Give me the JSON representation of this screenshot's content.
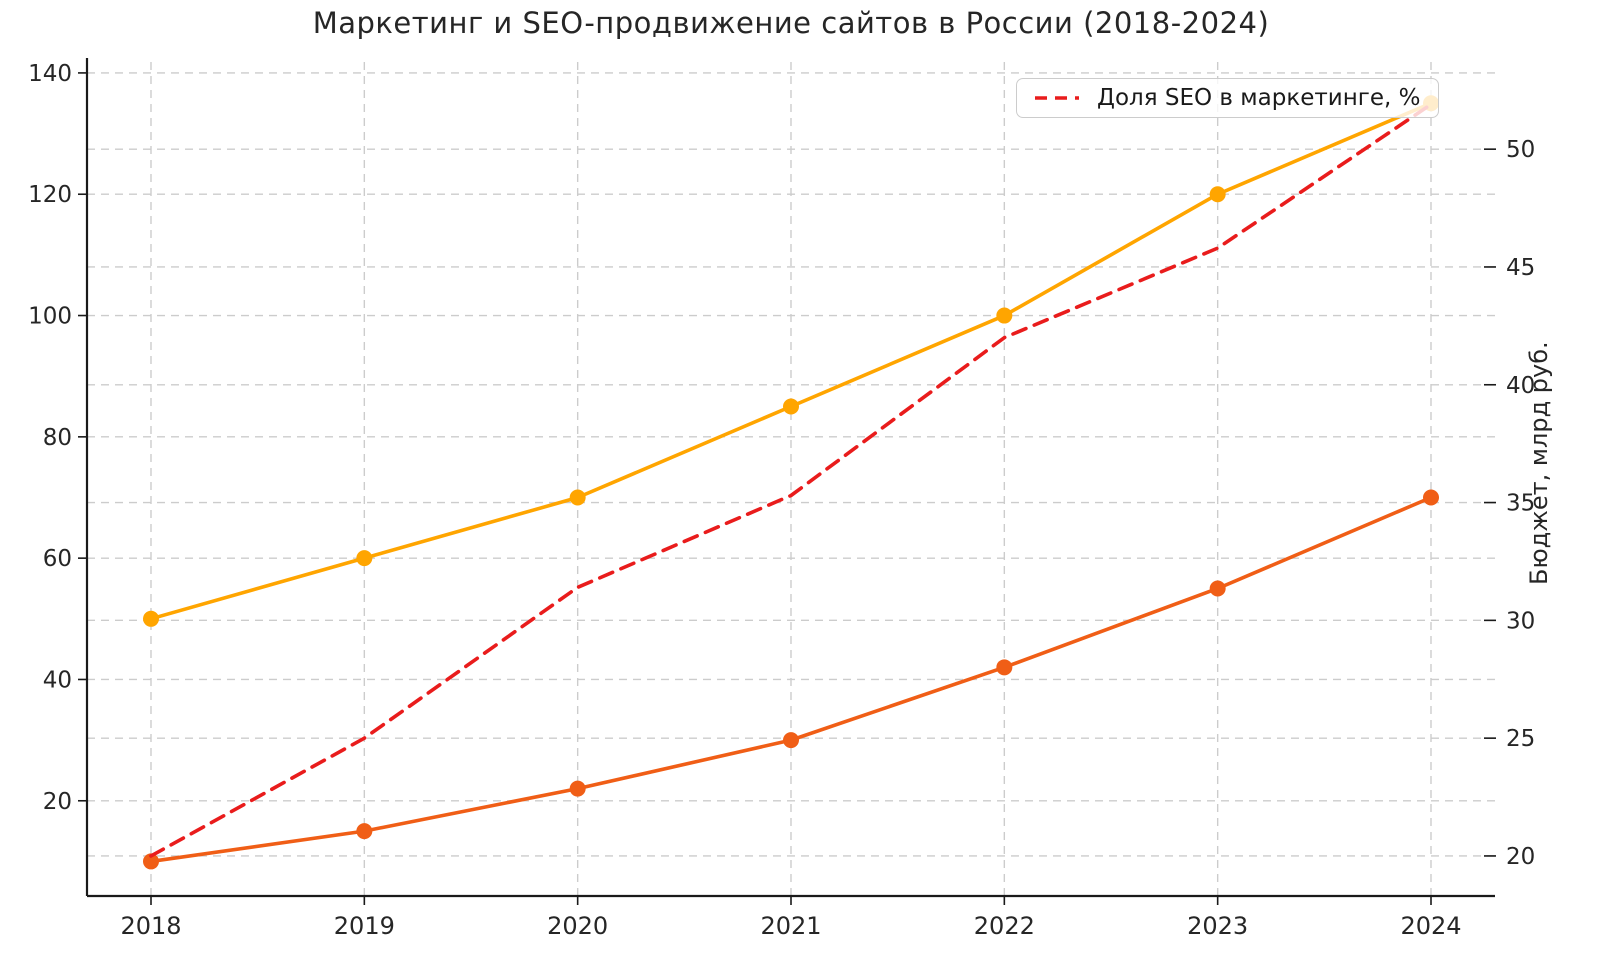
{
  "chart_data": {
    "type": "line",
    "title": "Маркетинг и SEO-продвижение сайтов в России (2018-2024)",
    "x": [
      2018,
      2019,
      2020,
      2021,
      2022,
      2023,
      2024
    ],
    "x_labels": [
      "2018",
      "2019",
      "2020",
      "2021",
      "2022",
      "2023",
      "2024"
    ],
    "series": [
      {
        "id": "budget-line-light-orange",
        "axis": "left",
        "values": [
          50,
          60,
          70,
          85,
          100,
          120,
          135
        ],
        "color": "#FFA500",
        "style": "solid",
        "markers": true
      },
      {
        "id": "budget-line-dark-orange",
        "axis": "left",
        "values": [
          10,
          15,
          22,
          30,
          42,
          55,
          70
        ],
        "color": "#F05E16",
        "style": "solid",
        "markers": true
      },
      {
        "id": "seo-share-line-red-dashed",
        "axis": "right",
        "values": [
          20,
          25,
          31.4,
          35.3,
          42,
          45.8,
          51.9
        ],
        "color": "#E91C1C",
        "style": "dashed",
        "markers": false
      }
    ],
    "legend": {
      "position": "upper right",
      "items": [
        {
          "label": "Доля SEO в маркетинге, %",
          "color": "#E91C1C",
          "dashed": true
        }
      ]
    },
    "xlabel": "",
    "ylabel_left": "",
    "ylabel_right": "Бюджет, млрд руб.",
    "yticks_left": [
      20,
      40,
      60,
      80,
      100,
      120,
      140
    ],
    "yticks_right": [
      20,
      25,
      30,
      35,
      40,
      45,
      50
    ],
    "xlim": [
      2017.7,
      2024.3
    ],
    "ylim_left": [
      4.3,
      141.8
    ],
    "ylim_right": [
      18.3,
      53.7
    ],
    "grid": true,
    "colors": {
      "grid": "#CCCCCC",
      "spine": "#1A1A1A",
      "tick_text": "#262626",
      "title_text": "#262626",
      "legend_border": "#CCCCCC"
    }
  }
}
